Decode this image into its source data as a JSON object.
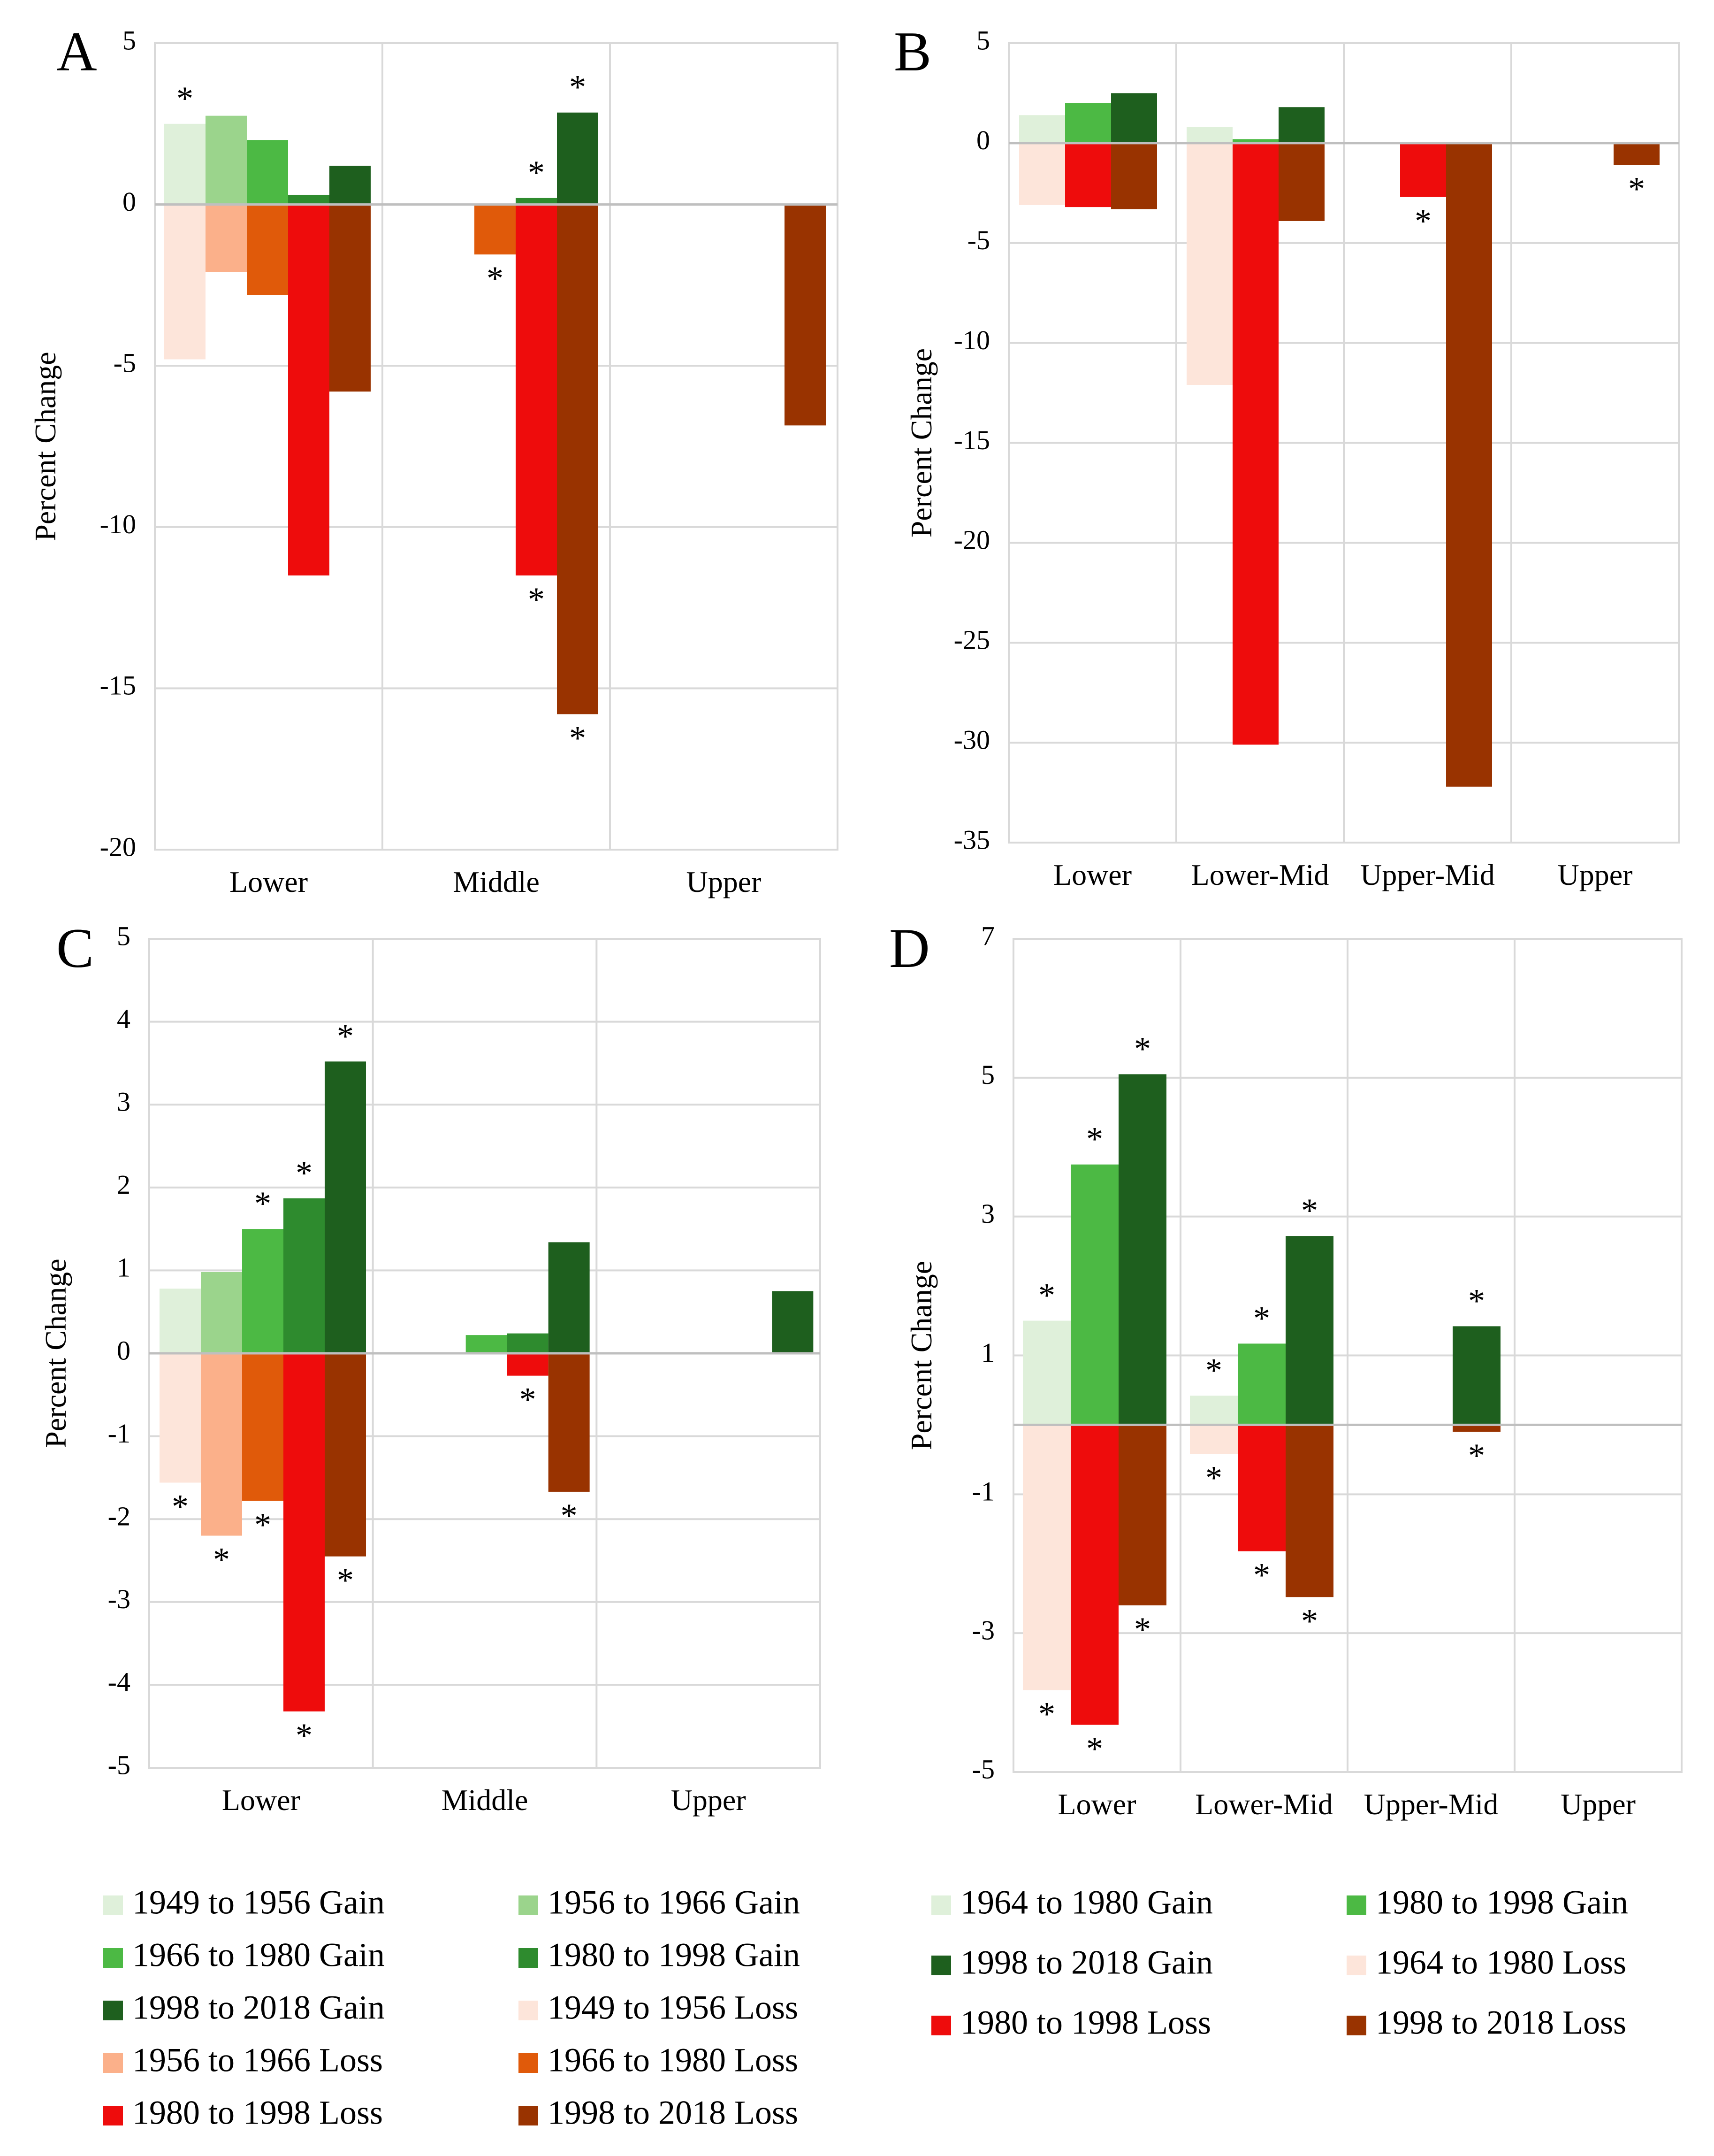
{
  "colors": {
    "g1949": "#dff0da",
    "g1956": "#9bd48c",
    "g1966": "#4cb944",
    "g1980": "#2e8b2e",
    "g1998": "#1e5f1e",
    "g1964": "#dff0da",
    "g1980d": "#4cb944",
    "l1949": "#fde5da",
    "l1956": "#fbb08a",
    "l1966": "#e05a0a",
    "l1980": "#ee0c0c",
    "l1998": "#993300",
    "l1964": "#fde5da"
  },
  "chart_data": [
    {
      "panel": "A",
      "type": "bar",
      "ylabel": "Percent Change",
      "ylim": [
        -20,
        5
      ],
      "yticks": [
        "5",
        "0",
        "-5",
        "-10",
        "-15",
        "-20"
      ],
      "categories": [
        "Lower",
        "Middle",
        "Upper"
      ],
      "series": [
        {
          "name": "1949 to 1956 Gain",
          "color": "g1949",
          "values": [
            2.5,
            null,
            null
          ],
          "sig": [
            true,
            false,
            false
          ]
        },
        {
          "name": "1949 to 1956 Loss",
          "color": "l1949",
          "values": [
            -4.8,
            null,
            null
          ],
          "sig": [
            false,
            false,
            false
          ]
        },
        {
          "name": "1956 to 1966 Gain",
          "color": "g1956",
          "values": [
            2.75,
            null,
            null
          ],
          "sig": [
            false,
            false,
            false
          ]
        },
        {
          "name": "1956 to 1966 Loss",
          "color": "l1956",
          "values": [
            -2.1,
            null,
            null
          ],
          "sig": [
            false,
            false,
            false
          ]
        },
        {
          "name": "1966 to 1980 Gain",
          "color": "g1966",
          "values": [
            2.0,
            null,
            null
          ],
          "sig": [
            false,
            false,
            false
          ]
        },
        {
          "name": "1966 to 1980 Loss",
          "color": "l1966",
          "values": [
            -2.8,
            -1.55,
            null
          ],
          "sig": [
            false,
            true,
            false
          ]
        },
        {
          "name": "1980 to 1998 Gain",
          "color": "g1980",
          "values": [
            0.3,
            0.2,
            null
          ],
          "sig": [
            false,
            true,
            false
          ]
        },
        {
          "name": "1980 to 1998 Loss",
          "color": "l1980",
          "values": [
            -11.5,
            -11.5,
            null
          ],
          "sig": [
            false,
            true,
            false
          ]
        },
        {
          "name": "1998 to 2018 Gain",
          "color": "g1998",
          "values": [
            1.2,
            2.85,
            null
          ],
          "sig": [
            false,
            true,
            false
          ]
        },
        {
          "name": "1998 to 2018 Loss",
          "color": "l1998",
          "values": [
            -5.8,
            -15.8,
            -6.85
          ],
          "sig": [
            false,
            true,
            false
          ]
        }
      ]
    },
    {
      "panel": "B",
      "type": "bar",
      "ylabel": "Percent Change",
      "ylim": [
        -35,
        5
      ],
      "yticks": [
        "5",
        "0",
        "-5",
        "-10",
        "-15",
        "-20",
        "-25",
        "-30",
        "-35"
      ],
      "categories": [
        "Lower",
        "Lower-Mid",
        "Upper-Mid",
        "Upper"
      ],
      "series": [
        {
          "name": "1964 to 1980 Gain",
          "color": "g1964",
          "values": [
            1.4,
            0.8,
            null,
            null
          ],
          "sig": [
            false,
            false,
            false,
            false
          ]
        },
        {
          "name": "1964 to 1980 Loss",
          "color": "l1964",
          "values": [
            -3.1,
            -12.1,
            null,
            null
          ],
          "sig": [
            false,
            false,
            false,
            false
          ]
        },
        {
          "name": "1980 to 1998 Gain",
          "color": "g1980d",
          "values": [
            2.0,
            0.2,
            null,
            null
          ],
          "sig": [
            false,
            false,
            false,
            false
          ]
        },
        {
          "name": "1980 to 1998 Loss",
          "color": "l1980",
          "values": [
            -3.2,
            -30.1,
            -2.7,
            null
          ],
          "sig": [
            false,
            false,
            true,
            false
          ]
        },
        {
          "name": "1998 to 2018 Gain",
          "color": "g1998",
          "values": [
            2.5,
            1.8,
            null,
            null
          ],
          "sig": [
            false,
            false,
            false,
            false
          ]
        },
        {
          "name": "1998 to 2018 Loss",
          "color": "l1998",
          "values": [
            -3.3,
            -3.9,
            -32.2,
            -1.1
          ],
          "sig": [
            false,
            false,
            false,
            true
          ]
        }
      ]
    },
    {
      "panel": "C",
      "type": "bar",
      "ylabel": "Percent Change",
      "ylim": [
        -5,
        5
      ],
      "yticks": [
        "5",
        "4",
        "3",
        "2",
        "1",
        "0",
        "-1",
        "-2",
        "-3",
        "-4",
        "-5"
      ],
      "categories": [
        "Lower",
        "Middle",
        "Upper"
      ],
      "series": [
        {
          "name": "1949 to 1956 Gain",
          "color": "g1949",
          "values": [
            0.78,
            null,
            null
          ],
          "sig": [
            false,
            false,
            false
          ]
        },
        {
          "name": "1949 to 1956 Loss",
          "color": "l1949",
          "values": [
            -1.56,
            null,
            null
          ],
          "sig": [
            true,
            false,
            false
          ]
        },
        {
          "name": "1956 to 1966 Gain",
          "color": "g1956",
          "values": [
            0.98,
            null,
            null
          ],
          "sig": [
            false,
            false,
            false
          ]
        },
        {
          "name": "1956 to 1966 Loss",
          "color": "l1956",
          "values": [
            -2.2,
            null,
            null
          ],
          "sig": [
            true,
            false,
            false
          ]
        },
        {
          "name": "1966 to 1980 Gain",
          "color": "g1966",
          "values": [
            1.5,
            0.22,
            null
          ],
          "sig": [
            true,
            false,
            false
          ]
        },
        {
          "name": "1966 to 1980 Loss",
          "color": "l1966",
          "values": [
            -1.78,
            null,
            null
          ],
          "sig": [
            true,
            false,
            false
          ]
        },
        {
          "name": "1980 to 1998 Gain",
          "color": "g1980",
          "values": [
            1.87,
            0.24,
            null
          ],
          "sig": [
            true,
            false,
            false
          ]
        },
        {
          "name": "1980 to 1998 Loss",
          "color": "l1980",
          "values": [
            -4.32,
            -0.27,
            null
          ],
          "sig": [
            true,
            true,
            false
          ]
        },
        {
          "name": "1998 to 2018 Gain",
          "color": "g1998",
          "values": [
            3.52,
            1.34,
            0.75
          ],
          "sig": [
            true,
            false,
            false
          ]
        },
        {
          "name": "1998 to 2018 Loss",
          "color": "l1998",
          "values": [
            -2.45,
            -1.67,
            null
          ],
          "sig": [
            true,
            true,
            false
          ]
        }
      ]
    },
    {
      "panel": "D",
      "type": "bar",
      "ylabel": "Percent Change",
      "ylim": [
        -5,
        7
      ],
      "yticks": [
        "7",
        "5",
        "3",
        "1",
        "-1",
        "-3",
        "-5"
      ],
      "categories": [
        "Lower",
        "Lower-Mid",
        "Upper-Mid",
        "Upper"
      ],
      "series": [
        {
          "name": "1964 to 1980 Gain",
          "color": "g1964",
          "values": [
            1.5,
            0.42,
            null,
            null
          ],
          "sig": [
            true,
            true,
            false,
            false
          ]
        },
        {
          "name": "1964 to 1980 Loss",
          "color": "l1964",
          "values": [
            -3.82,
            -0.42,
            null,
            null
          ],
          "sig": [
            true,
            true,
            false,
            false
          ]
        },
        {
          "name": "1980 to 1998 Gain",
          "color": "g1980d",
          "values": [
            3.75,
            1.17,
            null,
            null
          ],
          "sig": [
            true,
            true,
            false,
            false
          ]
        },
        {
          "name": "1980 to 1998 Loss",
          "color": "l1980",
          "values": [
            -4.32,
            -1.82,
            null,
            null
          ],
          "sig": [
            true,
            true,
            false,
            false
          ]
        },
        {
          "name": "1998 to 2018 Gain",
          "color": "g1998",
          "values": [
            5.05,
            2.72,
            1.42,
            null
          ],
          "sig": [
            true,
            true,
            true,
            false
          ]
        },
        {
          "name": "1998 to 2018 Loss",
          "color": "l1998",
          "values": [
            -2.6,
            -2.48,
            -0.1,
            null
          ],
          "sig": [
            true,
            true,
            true,
            false
          ]
        }
      ]
    }
  ],
  "star": "*",
  "legend_left": [
    {
      "label": "1949 to 1956 Gain",
      "color": "g1949"
    },
    {
      "label": "1956 to 1966 Gain",
      "color": "g1956"
    },
    {
      "label": "1966 to 1980 Gain",
      "color": "g1966"
    },
    {
      "label": "1980 to 1998 Gain",
      "color": "g1980"
    },
    {
      "label": "1998 to 2018 Gain",
      "color": "g1998"
    },
    {
      "label": "1949 to 1956 Loss",
      "color": "l1949"
    },
    {
      "label": "1956 to 1966 Loss",
      "color": "l1956"
    },
    {
      "label": "1966 to 1980 Loss",
      "color": "l1966"
    },
    {
      "label": "1980 to 1998 Loss",
      "color": "l1980"
    },
    {
      "label": "1998 to 2018 Loss",
      "color": "l1998"
    }
  ],
  "legend_right": [
    {
      "label": "1964 to 1980 Gain",
      "color": "g1964"
    },
    {
      "label": "1980 to 1998 Gain",
      "color": "g1980d"
    },
    {
      "label": "1998 to 2018 Gain",
      "color": "g1998"
    },
    {
      "label": "1964 to 1980 Loss",
      "color": "l1964"
    },
    {
      "label": "1980 to 1998 Loss",
      "color": "l1980"
    },
    {
      "label": "1998 to 2018 Loss",
      "color": "l1998"
    }
  ]
}
